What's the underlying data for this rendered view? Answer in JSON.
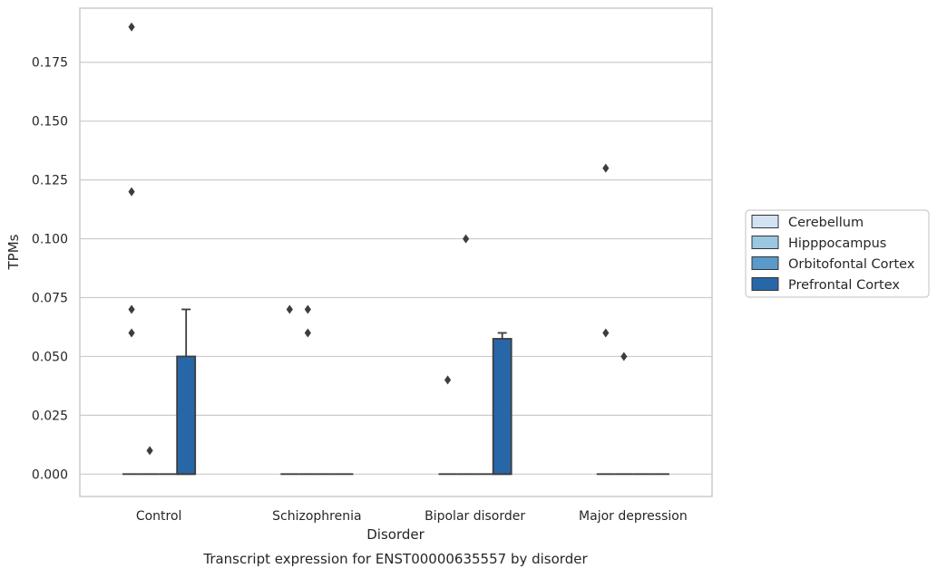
{
  "chart_data": {
    "type": "box",
    "caption": "Transcript expression for ENST00000635557 by disorder",
    "xlabel": "Disorder",
    "ylabel": "TPMs",
    "categories": [
      "Control",
      "Schizophrenia",
      "Bipolar disorder",
      "Major depression"
    ],
    "ylim": [
      -0.0095,
      0.198
    ],
    "yticks": [
      0.0,
      0.025,
      0.05,
      0.075,
      0.1,
      0.125,
      0.15,
      0.175
    ],
    "ytick_labels": [
      "0.000",
      "0.025",
      "0.050",
      "0.075",
      "0.100",
      "0.125",
      "0.150",
      "0.175"
    ],
    "grid": true,
    "legend": {
      "placement": "right"
    },
    "series": [
      {
        "name": "Cerebellum",
        "color": "#d1e2f2",
        "boxes": [
          {
            "q1": 0,
            "median": 0,
            "q3": 0,
            "whisker_low": 0,
            "whisker_high": 0,
            "outliers": [
              0.06,
              0.07,
              0.12,
              0.19
            ]
          },
          {
            "q1": 0,
            "median": 0,
            "q3": 0,
            "whisker_low": 0,
            "whisker_high": 0,
            "outliers": [
              0.07
            ]
          },
          {
            "q1": 0,
            "median": 0,
            "q3": 0,
            "whisker_low": 0,
            "whisker_high": 0,
            "outliers": [
              0.04
            ]
          },
          {
            "q1": 0,
            "median": 0,
            "q3": 0,
            "whisker_low": 0,
            "whisker_high": 0,
            "outliers": [
              0.06,
              0.13
            ]
          }
        ]
      },
      {
        "name": "Hipppocampus",
        "color": "#9ac8e0",
        "boxes": [
          {
            "q1": 0,
            "median": 0,
            "q3": 0,
            "whisker_low": 0,
            "whisker_high": 0,
            "outliers": [
              0.01
            ]
          },
          {
            "q1": 0,
            "median": 0,
            "q3": 0,
            "whisker_low": 0,
            "whisker_high": 0,
            "outliers": [
              0.06,
              0.07
            ]
          },
          {
            "q1": 0,
            "median": 0,
            "q3": 0,
            "whisker_low": 0,
            "whisker_high": 0,
            "outliers": [
              0.1
            ]
          },
          {
            "q1": 0,
            "median": 0,
            "q3": 0,
            "whisker_low": 0,
            "whisker_high": 0,
            "outliers": [
              0.05
            ]
          }
        ]
      },
      {
        "name": "Orbitofontal Cortex",
        "color": "#5a9ac9",
        "boxes": [
          {
            "q1": 0,
            "median": 0,
            "q3": 0,
            "whisker_low": 0,
            "whisker_high": 0,
            "outliers": []
          },
          {
            "q1": 0,
            "median": 0,
            "q3": 0,
            "whisker_low": 0,
            "whisker_high": 0,
            "outliers": []
          },
          {
            "q1": 0,
            "median": 0,
            "q3": 0,
            "whisker_low": 0,
            "whisker_high": 0,
            "outliers": []
          },
          {
            "q1": 0,
            "median": 0,
            "q3": 0,
            "whisker_low": 0,
            "whisker_high": 0,
            "outliers": []
          }
        ]
      },
      {
        "name": "Prefrontal Cortex",
        "color": "#2767a8",
        "boxes": [
          {
            "q1": 0,
            "median": 0,
            "q3": 0.05,
            "whisker_low": 0,
            "whisker_high": 0.07,
            "outliers": []
          },
          {
            "q1": 0,
            "median": 0,
            "q3": 0,
            "whisker_low": 0,
            "whisker_high": 0,
            "outliers": []
          },
          {
            "q1": 0,
            "median": 0,
            "q3": 0.0575,
            "whisker_low": 0,
            "whisker_high": 0.06,
            "outliers": []
          },
          {
            "q1": 0,
            "median": 0,
            "q3": 0,
            "whisker_low": 0,
            "whisker_high": 0,
            "outliers": []
          }
        ]
      }
    ]
  }
}
